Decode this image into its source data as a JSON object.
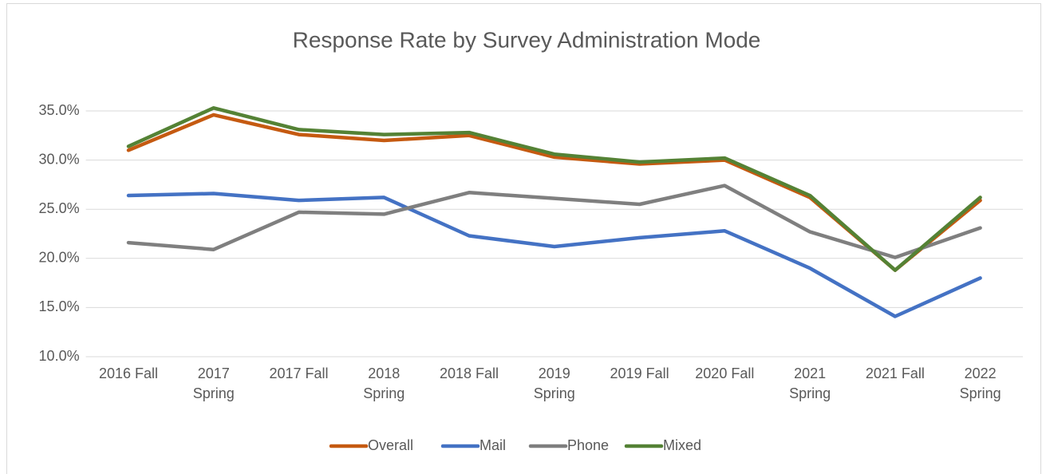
{
  "chart_data": {
    "type": "line",
    "title": "Response Rate by Survey Administration Mode",
    "categories": [
      "2016 Fall",
      "2017\nSpring",
      "2017 Fall",
      "2018\nSpring",
      "2018 Fall",
      "2019\nSpring",
      "2019 Fall",
      "2020 Fall",
      "2021\nSpring",
      "2021 Fall",
      "2022\nSpring"
    ],
    "series": [
      {
        "name": "Overall",
        "color": "#c55a11",
        "values": [
          31.0,
          34.6,
          32.6,
          32.0,
          32.5,
          30.3,
          29.6,
          30.0,
          26.2,
          18.8,
          25.9
        ]
      },
      {
        "name": "Mail",
        "color": "#4472c4",
        "values": [
          26.4,
          26.6,
          25.9,
          26.2,
          22.3,
          21.2,
          22.1,
          22.8,
          19.0,
          14.1,
          18.0
        ]
      },
      {
        "name": "Phone",
        "color": "#7f7f7f",
        "values": [
          21.6,
          20.9,
          24.7,
          24.5,
          26.7,
          26.1,
          25.5,
          27.4,
          22.7,
          20.1,
          23.1
        ]
      },
      {
        "name": "Mixed",
        "color": "#548235",
        "values": [
          31.4,
          35.3,
          33.1,
          32.6,
          32.8,
          30.6,
          29.8,
          30.2,
          26.4,
          18.8,
          26.2
        ]
      }
    ],
    "ylim": [
      10,
      35
    ],
    "yticks": [
      {
        "value": 10,
        "label": "10.0%"
      },
      {
        "value": 15,
        "label": "15.0%"
      },
      {
        "value": 20,
        "label": "20.0%"
      },
      {
        "value": 25,
        "label": "25.0%"
      },
      {
        "value": 30,
        "label": "30.0%"
      },
      {
        "value": 35,
        "label": "35.0%"
      }
    ],
    "grid": true,
    "legend": "bottom"
  }
}
